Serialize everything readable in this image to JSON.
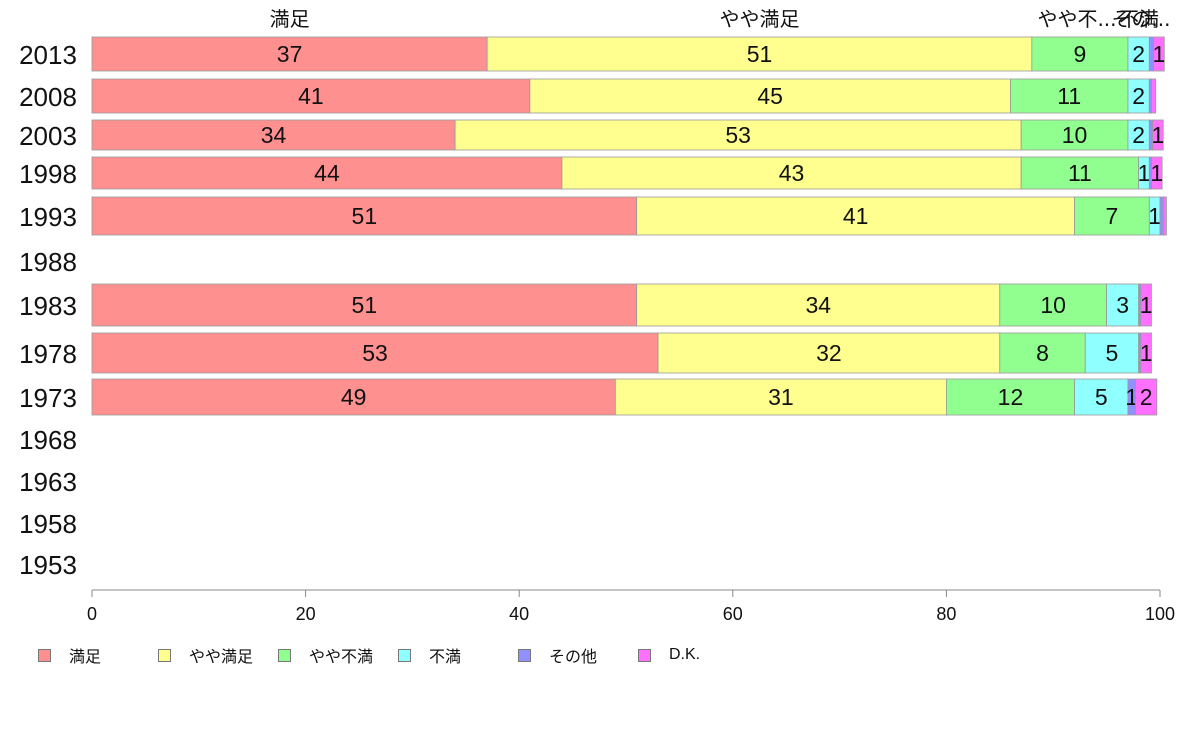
{
  "chart_data": {
    "type": "bar",
    "orientation": "horizontal",
    "stacked": true,
    "categories": [
      "2013",
      "2008",
      "2003",
      "1998",
      "1993",
      "1988",
      "1983",
      "1978",
      "1973",
      "1968",
      "1963",
      "1958",
      "1953"
    ],
    "series": [
      {
        "name": "満足",
        "color": "#ff9090",
        "values": [
          37,
          41,
          34,
          44,
          51,
          null,
          51,
          53,
          49,
          null,
          null,
          null,
          null
        ]
      },
      {
        "name": "やや満足",
        "color": "#ffff90",
        "values": [
          51,
          45,
          53,
          43,
          41,
          null,
          34,
          32,
          31,
          null,
          null,
          null,
          null
        ]
      },
      {
        "name": "やや不満",
        "color": "#90ff90",
        "values": [
          9,
          11,
          10,
          11,
          7,
          null,
          10,
          8,
          12,
          null,
          null,
          null,
          null
        ]
      },
      {
        "name": "不満",
        "color": "#90ffff",
        "values": [
          2,
          2,
          2,
          1,
          1,
          null,
          3,
          5,
          5,
          null,
          null,
          null,
          null
        ]
      },
      {
        "name": "その他",
        "color": "#9090ff",
        "values": [
          0.4,
          0.2,
          0.3,
          0.2,
          0.3,
          null,
          0.2,
          0.2,
          0.7,
          null,
          null,
          null,
          null
        ]
      },
      {
        "name": "D.K.",
        "color": "#ff70ff",
        "values": [
          1,
          0.4,
          1,
          1,
          0.3,
          null,
          1,
          1,
          2,
          null,
          null,
          null,
          null
        ]
      }
    ],
    "data_labels": [
      [
        "37",
        "51",
        "9",
        "2",
        "",
        "1"
      ],
      [
        "41",
        "45",
        "11",
        "2",
        "",
        ""
      ],
      [
        "34",
        "53",
        "10",
        "2",
        "",
        "1"
      ],
      [
        "44",
        "43",
        "11",
        "1",
        "",
        "1"
      ],
      [
        "51",
        "41",
        "7",
        "1",
        "",
        ""
      ],
      [
        "",
        "",
        "",
        "",
        "",
        ""
      ],
      [
        "51",
        "34",
        "10",
        "3",
        "",
        "1"
      ],
      [
        "53",
        "32",
        "8",
        "5",
        "",
        "1"
      ],
      [
        "49",
        "31",
        "12",
        "5",
        "1",
        "2"
      ],
      [
        "",
        "",
        "",
        "",
        "",
        ""
      ],
      [
        "",
        "",
        "",
        "",
        "",
        ""
      ],
      [
        "",
        "",
        "",
        "",
        "",
        ""
      ],
      [
        "",
        "",
        "",
        "",
        "",
        ""
      ]
    ],
    "top_labels": [
      "満足",
      "やや満足",
      "やや不...",
      "不満",
      "その..."
    ],
    "xlim": [
      0,
      100
    ],
    "xticks": [
      0,
      20,
      40,
      60,
      80,
      100
    ],
    "legend_position": "bottom-left"
  }
}
